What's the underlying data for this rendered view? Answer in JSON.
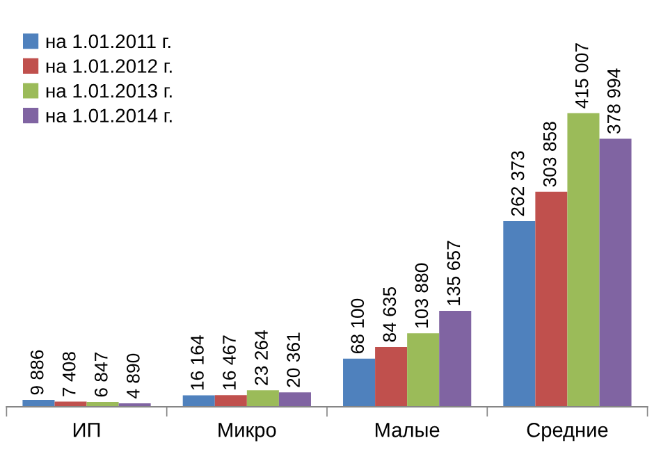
{
  "chart_data": {
    "type": "bar",
    "categories": [
      "ИП",
      "Микро",
      "Малые",
      "Средние"
    ],
    "series": [
      {
        "name": "на 1.01.2011 г.",
        "color": "#4f81bd",
        "values": [
          9886,
          16164,
          68100,
          262373
        ],
        "value_labels": [
          "9 886",
          "16 164",
          "68 100",
          "262 373"
        ]
      },
      {
        "name": "на 1.01.2012 г.",
        "color": "#c0504d",
        "values": [
          7408,
          16467,
          84635,
          303858
        ],
        "value_labels": [
          "7 408",
          "16 467",
          "84 635",
          "303 858"
        ]
      },
      {
        "name": "на 1.01.2013 г.",
        "color": "#9bbb59",
        "values": [
          6847,
          23264,
          103880,
          415007
        ],
        "value_labels": [
          "6 847",
          "23 264",
          "103 880",
          "415 007"
        ]
      },
      {
        "name": "на 1.01.2014 г.",
        "color": "#8064a2",
        "values": [
          4890,
          20361,
          135657,
          378994
        ],
        "value_labels": [
          "4 890",
          "20 361",
          "135 657",
          "378 994"
        ]
      }
    ],
    "legend": "top left",
    "grid": false,
    "tick_labels": "x"
  }
}
